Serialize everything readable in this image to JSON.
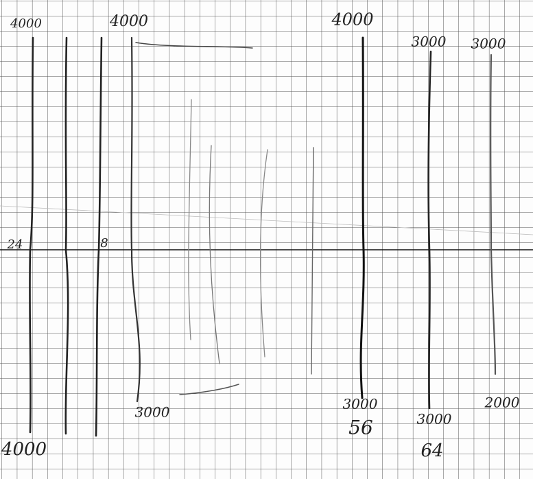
{
  "labels": [
    {
      "text": "4000"
    },
    {
      "text": "4000"
    },
    {
      "text": "4000"
    },
    {
      "text": "3000"
    },
    {
      "text": "3000"
    },
    {
      "text": "24"
    },
    {
      "text": "8"
    },
    {
      "text": "3000"
    },
    {
      "text": "3000"
    },
    {
      "text": "56"
    },
    {
      "text": "3000"
    },
    {
      "text": "64"
    },
    {
      "text": "2000"
    },
    {
      "text": "4000"
    }
  ]
}
